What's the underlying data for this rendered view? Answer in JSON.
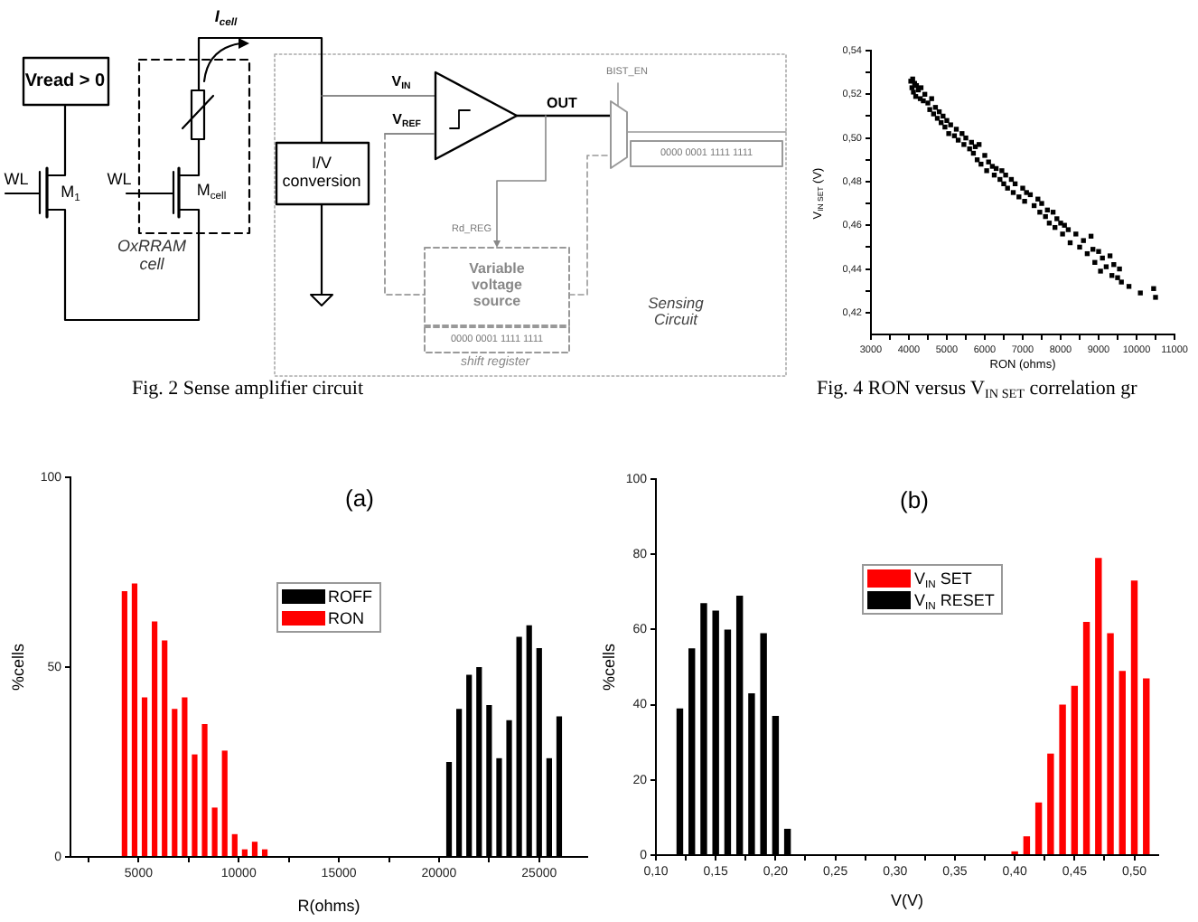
{
  "chart_data": [
    {
      "type": "other",
      "annotations": [
        "Vread > 0",
        "I$_{cell}$",
        "WL",
        "M$_{1}$",
        "WL",
        "M$_{cell}$",
        "OxRRAM cell",
        "I/V conversion",
        "V$_{IN}$",
        "V$_{REF}$",
        "OUT",
        "BIST_EN",
        "0000 0001 1111 1111",
        "Rd_REG",
        "Variable voltage source",
        "0000 0001 1111 1111",
        "shift register",
        "Sensing Circuit",
        "Fig. 2 Sense amplifier circuit"
      ]
    },
    {
      "type": "scatter",
      "xlabel": "RON (ohms)",
      "ylabel": "V$_{IN SET}$ (V)",
      "color": "#000000",
      "marker": "square",
      "x": [
        4050,
        4080,
        4100,
        4120,
        4150,
        4180,
        4200,
        4250,
        4300,
        4320,
        4380,
        4420,
        4500,
        4550,
        4600,
        4650,
        4700,
        4750,
        4800,
        4850,
        4900,
        4950,
        5000,
        5050,
        5100,
        5200,
        5250,
        5300,
        5400,
        5450,
        5500,
        5600,
        5650,
        5700,
        5750,
        5800,
        5850,
        5900,
        6000,
        6050,
        6100,
        6200,
        6250,
        6300,
        6400,
        6450,
        6500,
        6550,
        6600,
        6700,
        6750,
        6800,
        6900,
        7000,
        7050,
        7100,
        7200,
        7300,
        7400,
        7450,
        7500,
        7600,
        7650,
        7700,
        7800,
        7850,
        7900,
        8000,
        8050,
        8100,
        8200,
        8250,
        8400,
        8500,
        8600,
        8700,
        8800,
        8850,
        8900,
        9000,
        9050,
        9100,
        9200,
        9300,
        9350,
        9400,
        9500,
        9550,
        9600,
        9800,
        10100,
        10450,
        10500
      ],
      "values": [
        0.526,
        0.523,
        0.527,
        0.521,
        0.525,
        0.519,
        0.524,
        0.522,
        0.518,
        0.523,
        0.517,
        0.52,
        0.516,
        0.513,
        0.518,
        0.511,
        0.514,
        0.509,
        0.512,
        0.507,
        0.51,
        0.505,
        0.508,
        0.502,
        0.506,
        0.501,
        0.504,
        0.499,
        0.502,
        0.497,
        0.5,
        0.495,
        0.498,
        0.493,
        0.496,
        0.49,
        0.497,
        0.488,
        0.492,
        0.485,
        0.489,
        0.487,
        0.483,
        0.486,
        0.481,
        0.485,
        0.479,
        0.483,
        0.477,
        0.481,
        0.475,
        0.479,
        0.473,
        0.477,
        0.471,
        0.475,
        0.474,
        0.469,
        0.472,
        0.466,
        0.47,
        0.464,
        0.467,
        0.461,
        0.466,
        0.459,
        0.463,
        0.461,
        0.456,
        0.46,
        0.458,
        0.452,
        0.456,
        0.45,
        0.453,
        0.447,
        0.455,
        0.449,
        0.443,
        0.448,
        0.439,
        0.445,
        0.441,
        0.446,
        0.437,
        0.442,
        0.436,
        0.44,
        0.434,
        0.432,
        0.429,
        0.431,
        0.427
      ],
      "xlim": [
        3000,
        11000
      ],
      "ylim": [
        0.41,
        0.54
      ],
      "xticks": [
        3000,
        {
          "value": 3500,
          "label": null
        },
        4000,
        {
          "value": 4500,
          "label": null
        },
        5000,
        {
          "value": 5500,
          "label": null
        },
        6000,
        {
          "value": 6500,
          "label": null
        },
        7000,
        {
          "value": 7500,
          "label": null
        },
        8000,
        {
          "value": 8500,
          "label": null
        },
        9000,
        {
          "value": 9500,
          "label": null
        },
        10000,
        {
          "value": 10500,
          "label": null
        },
        11000
      ],
      "yticks": [
        {
          "value": 0.42,
          "label": "0,42"
        },
        {
          "value": 0.43,
          "label": null
        },
        {
          "value": 0.44,
          "label": "0,44"
        },
        {
          "value": 0.45,
          "label": null
        },
        {
          "value": 0.46,
          "label": "0,46"
        },
        {
          "value": 0.47,
          "label": null
        },
        {
          "value": 0.48,
          "label": "0,48"
        },
        {
          "value": 0.49,
          "label": null
        },
        {
          "value": 0.5,
          "label": "0,50"
        },
        {
          "value": 0.51,
          "label": null
        },
        {
          "value": 0.52,
          "label": "0,52"
        },
        {
          "value": 0.53,
          "label": null
        },
        {
          "value": 0.54,
          "label": "0,54"
        }
      ],
      "annotations": [
        "Fig. 4 RON versus V$_{IN SET}$ correlation gr"
      ]
    },
    {
      "type": "bar",
      "title": "(a)",
      "xlabel": "R(ohms)",
      "ylabel": "%cells",
      "legend": "top",
      "series": [
        {
          "name": "ROFF",
          "color": "#000000",
          "x": [
            20500,
            21000,
            21500,
            22000,
            22500,
            23000,
            23500,
            24000,
            24500,
            25000,
            25500,
            26000
          ],
          "values": [
            25,
            39,
            48,
            50,
            40,
            26,
            36,
            58,
            61,
            55,
            26,
            37
          ]
        },
        {
          "name": "RON",
          "color": "#ff0000",
          "x": [
            4300,
            4800,
            5300,
            5800,
            6300,
            6800,
            7300,
            7800,
            8300,
            8800,
            9300,
            9800,
            10300,
            10800,
            11300
          ],
          "values": [
            70,
            72,
            42,
            62,
            57,
            39,
            42,
            27,
            35,
            13,
            28,
            6,
            2,
            4,
            2
          ]
        }
      ],
      "xlim": [
        1600,
        27400
      ],
      "ylim": [
        0,
        100
      ],
      "xticks": [
        {
          "value": 2500,
          "label": null
        },
        5000,
        {
          "value": 7500,
          "label": null
        },
        10000,
        {
          "value": 12500,
          "label": null
        },
        15000,
        {
          "value": 17500,
          "label": null
        },
        20000,
        {
          "value": 22500,
          "label": null
        },
        25000
      ],
      "yticks": [
        0,
        50,
        100
      ]
    },
    {
      "type": "bar",
      "title": "(b)",
      "xlabel": "V(V)",
      "ylabel": "%cells",
      "legend": "top",
      "series": [
        {
          "name": "V$_{IN}$ SET",
          "color": "#ff0000",
          "x": [
            0.4,
            0.41,
            0.42,
            0.43,
            0.44,
            0.45,
            0.46,
            0.47,
            0.48,
            0.49,
            0.5,
            0.51
          ],
          "values": [
            1,
            5,
            14,
            27,
            40,
            45,
            62,
            79,
            59,
            49,
            73,
            47
          ]
        },
        {
          "name": "V$_{IN}$ RESET",
          "color": "#000000",
          "x": [
            0.12,
            0.13,
            0.14,
            0.15,
            0.16,
            0.17,
            0.18,
            0.19,
            0.2,
            0.21
          ],
          "values": [
            39,
            55,
            67,
            65,
            60,
            69,
            43,
            59,
            37,
            7
          ]
        }
      ],
      "xlim": [
        0.1,
        0.52
      ],
      "ylim": [
        0,
        100
      ],
      "xticks": [
        {
          "value": 0.1,
          "label": "0,10"
        },
        {
          "value": 0.125,
          "label": null
        },
        {
          "value": 0.15,
          "label": "0,15"
        },
        {
          "value": 0.175,
          "label": null
        },
        {
          "value": 0.2,
          "label": "0,20"
        },
        {
          "value": 0.225,
          "label": null
        },
        {
          "value": 0.25,
          "label": "0,25"
        },
        {
          "value": 0.275,
          "label": null
        },
        {
          "value": 0.3,
          "label": "0,30"
        },
        {
          "value": 0.325,
          "label": null
        },
        {
          "value": 0.35,
          "label": "0,35"
        },
        {
          "value": 0.375,
          "label": null
        },
        {
          "value": 0.4,
          "label": "0,40"
        },
        {
          "value": 0.425,
          "label": null
        },
        {
          "value": 0.45,
          "label": "0,45"
        },
        {
          "value": 0.475,
          "label": null
        },
        {
          "value": 0.5,
          "label": "0,50"
        }
      ],
      "yticks": [
        0,
        20,
        40,
        60,
        80,
        100
      ]
    }
  ]
}
